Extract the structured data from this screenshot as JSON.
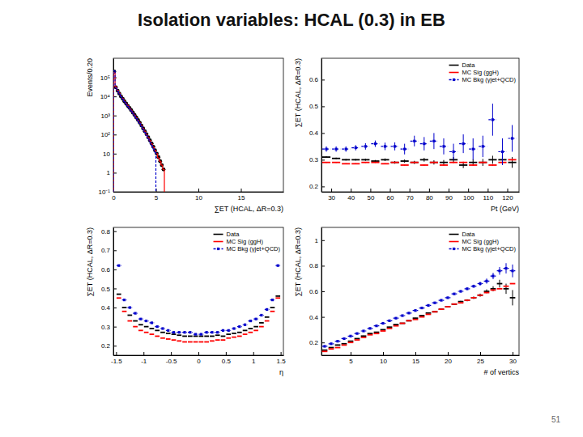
{
  "slide": {
    "title": "Isolation variables:  HCAL (0.3) in EB",
    "page": 51
  },
  "chart_data": [
    {
      "type": "histogram",
      "log": "y",
      "x_label": "∑ET (HCAL, ΔR=0.3)",
      "y_label": "Events/0.20",
      "xlim": [
        0,
        20
      ],
      "xticks": [
        0,
        5,
        10,
        15
      ],
      "ylim": [
        0.1,
        1000000
      ],
      "yticks": [
        {
          "value": 0.1,
          "label": "10⁻¹"
        },
        1,
        10,
        {
          "value": 100,
          "label": "10²"
        },
        {
          "value": 1000,
          "label": "10³"
        },
        {
          "value": 10000,
          "label": "10⁴"
        },
        {
          "value": 100000,
          "label": "10⁵"
        }
      ],
      "bins": [
        0,
        0.2,
        0.4,
        0.6,
        0.8,
        1.0,
        1.2,
        1.4,
        1.6,
        1.8,
        2.0,
        2.2,
        2.4,
        2.6,
        2.8,
        3.0,
        3.2,
        3.4,
        3.6,
        3.8,
        4.0,
        4.2,
        4.4,
        4.6,
        4.8,
        5.0,
        5.2,
        5.4,
        5.6,
        5.8,
        6.0
      ],
      "series": [
        {
          "type": "scatter",
          "marker": "circle",
          "color": "#000000",
          "values": [
            200000,
            30000,
            20000,
            14000,
            10000,
            7500,
            5500,
            4200,
            3200,
            2500,
            1900,
            1400,
            1050,
            780,
            580,
            420,
            300,
            210,
            150,
            105,
            72,
            50,
            34,
            23,
            15,
            10,
            6.5,
            4,
            2.5,
            1.5
          ]
        },
        {
          "type": "step",
          "line_style": "solid",
          "color": "#ff0000",
          "values": [
            180000,
            32000,
            21000,
            15000,
            10500,
            7800,
            5700,
            4300,
            3300,
            2500,
            1900,
            1400,
            1050,
            770,
            560,
            410,
            300,
            210,
            150,
            100,
            70,
            48,
            33,
            22,
            15,
            10,
            6,
            4,
            2.5,
            1.5
          ]
        },
        {
          "type": "step",
          "line_style": "dashed",
          "color": "#0000cc",
          "values": [
            220000,
            28000,
            19000,
            13500,
            9800,
            7200,
            5300,
            4000,
            3000,
            2300,
            1750,
            1300,
            950,
            700,
            520,
            380,
            270,
            190,
            130,
            90,
            60,
            40,
            27,
            18,
            12,
            null,
            null,
            null,
            null,
            null
          ]
        }
      ]
    },
    {
      "type": "scatter",
      "legend": "top-right",
      "x_label": "Pt (GeV)",
      "y_label": "∑ET (HCAL, ΔR=0.3)",
      "xlim": [
        25,
        126
      ],
      "xticks": [
        30,
        40,
        50,
        60,
        70,
        80,
        90,
        100,
        110,
        120
      ],
      "ylim": [
        0.18,
        0.68
      ],
      "yticks": [
        0.2,
        0.3,
        0.4,
        0.5,
        0.6
      ],
      "x": [
        27.5,
        32.5,
        37.5,
        42.5,
        47.5,
        52.5,
        57.5,
        62.5,
        67.5,
        72.5,
        77.5,
        82.5,
        87.5,
        92.5,
        97.5,
        102.5,
        107.5,
        112.5,
        117.5,
        122.5
      ],
      "series": [
        {
          "name": "Data",
          "color": "#000000",
          "marker": "dash",
          "line_style": "solid",
          "values": [
            0.31,
            0.305,
            0.3,
            0.3,
            0.3,
            0.295,
            0.3,
            0.29,
            0.295,
            0.29,
            0.3,
            0.29,
            0.29,
            0.3,
            0.28,
            0.29,
            0.29,
            0.3,
            0.3,
            0.29
          ],
          "errors": [
            0.003,
            0.003,
            0.003,
            0.003,
            0.004,
            0.004,
            0.005,
            0.005,
            0.006,
            0.006,
            0.007,
            0.008,
            0.009,
            0.01,
            0.011,
            0.012,
            0.013,
            0.015,
            0.017,
            0.02
          ]
        },
        {
          "name": "MC Sig (ggH)",
          "color": "#ff0000",
          "marker": "dash",
          "line_style": "solid",
          "values": [
            0.29,
            0.29,
            0.285,
            0.285,
            0.29,
            0.29,
            0.285,
            0.29,
            0.28,
            0.29,
            0.28,
            0.29,
            0.28,
            0.29,
            0.29,
            0.28,
            0.29,
            0.28,
            0.29,
            0.3
          ],
          "errors": [
            0.002,
            0.002,
            0.002,
            0.002,
            0.002,
            0.002,
            0.002,
            0.002,
            0.002,
            0.002,
            0.003,
            0.003,
            0.003,
            0.003,
            0.003,
            0.003,
            0.003,
            0.003,
            0.003,
            0.003
          ]
        },
        {
          "name": "MC Bkg (γjet+QCD)",
          "color": "#0000cc",
          "marker": "square",
          "line_style": "dashed",
          "values": [
            0.34,
            0.34,
            0.34,
            0.345,
            0.35,
            0.36,
            0.35,
            0.35,
            0.34,
            0.37,
            0.36,
            0.37,
            0.35,
            0.33,
            0.36,
            0.34,
            0.35,
            0.45,
            0.33,
            0.38
          ],
          "errors": [
            0.01,
            0.01,
            0.01,
            0.01,
            0.012,
            0.012,
            0.014,
            0.015,
            0.02,
            0.02,
            0.025,
            0.03,
            0.03,
            0.03,
            0.035,
            0.04,
            0.04,
            0.06,
            0.05,
            0.05
          ]
        }
      ]
    },
    {
      "type": "scatter",
      "legend": "top-right",
      "x_label": "η",
      "y_label": "∑ET (HCAL, ΔR=0.3)",
      "xlim": [
        -1.55,
        1.55
      ],
      "xticks": [
        -1.5,
        -1,
        -0.5,
        0,
        0.5,
        1,
        1.5
      ],
      "ylim": [
        0.15,
        0.82
      ],
      "yticks": [
        0.2,
        0.3,
        0.4,
        0.5,
        0.6,
        0.7,
        0.8
      ],
      "x": [
        -1.45,
        -1.35,
        -1.25,
        -1.15,
        -1.05,
        -0.95,
        -0.85,
        -0.75,
        -0.65,
        -0.55,
        -0.45,
        -0.35,
        -0.25,
        -0.15,
        -0.05,
        0.05,
        0.15,
        0.25,
        0.35,
        0.45,
        0.55,
        0.65,
        0.75,
        0.85,
        0.95,
        1.05,
        1.15,
        1.25,
        1.35,
        1.45
      ],
      "series": [
        {
          "name": "Data",
          "color": "#000000",
          "marker": "dash",
          "line_style": "solid",
          "values": [
            0.47,
            0.4,
            0.36,
            0.33,
            0.31,
            0.3,
            0.29,
            0.28,
            0.27,
            0.265,
            0.26,
            0.255,
            0.25,
            0.25,
            0.25,
            0.25,
            0.25,
            0.25,
            0.255,
            0.25,
            0.26,
            0.265,
            0.27,
            0.28,
            0.29,
            0.3,
            0.32,
            0.35,
            0.4,
            0.46
          ]
        },
        {
          "name": "MC Sig (ggH)",
          "color": "#ff0000",
          "marker": "dash",
          "line_style": "solid",
          "values": [
            0.45,
            0.38,
            0.33,
            0.3,
            0.28,
            0.27,
            0.26,
            0.25,
            0.24,
            0.235,
            0.23,
            0.225,
            0.22,
            0.22,
            0.22,
            0.22,
            0.22,
            0.225,
            0.23,
            0.23,
            0.24,
            0.245,
            0.25,
            0.26,
            0.27,
            0.28,
            0.3,
            0.33,
            0.38,
            0.45
          ]
        },
        {
          "name": "MC Bkg (γjet+QCD)",
          "color": "#0000cc",
          "marker": "square",
          "line_style": "dashed",
          "values": [
            0.62,
            0.44,
            0.4,
            0.37,
            0.34,
            0.33,
            0.32,
            0.3,
            0.29,
            0.28,
            0.27,
            0.27,
            0.27,
            0.27,
            0.26,
            0.26,
            0.27,
            0.27,
            0.27,
            0.28,
            0.28,
            0.29,
            0.3,
            0.31,
            0.33,
            0.34,
            0.36,
            0.39,
            0.44,
            0.62
          ]
        }
      ]
    },
    {
      "type": "scatter",
      "legend": "top-right",
      "x_label": "# of vertics",
      "y_label": "∑ET (HCAL, ΔR=0.3)",
      "xlim": [
        0.5,
        31
      ],
      "xticks": [
        5,
        10,
        15,
        20,
        25,
        30
      ],
      "ylim": [
        0.1,
        1.1
      ],
      "yticks": [
        0.2,
        0.4,
        0.6,
        0.8,
        1
      ],
      "x": [
        1,
        2,
        3,
        4,
        5,
        6,
        7,
        8,
        9,
        10,
        11,
        12,
        13,
        14,
        15,
        16,
        17,
        18,
        19,
        20,
        21,
        22,
        23,
        24,
        25,
        26,
        27,
        28,
        29,
        30
      ],
      "series": [
        {
          "name": "Data",
          "color": "#000000",
          "marker": "dash",
          "line_style": "solid",
          "values": [
            0.14,
            0.16,
            0.18,
            0.19,
            0.21,
            0.23,
            0.25,
            0.27,
            0.28,
            0.3,
            0.32,
            0.34,
            0.35,
            0.37,
            0.39,
            0.41,
            0.43,
            0.44,
            0.46,
            0.48,
            0.5,
            0.52,
            0.53,
            0.55,
            0.57,
            0.6,
            0.62,
            0.66,
            0.62,
            0.55
          ],
          "errors": [
            0.003,
            0.003,
            0.003,
            0.003,
            0.003,
            0.003,
            0.003,
            0.003,
            0.003,
            0.003,
            0.003,
            0.003,
            0.003,
            0.003,
            0.003,
            0.003,
            0.003,
            0.003,
            0.003,
            0.003,
            0.005,
            0.006,
            0.008,
            0.01,
            0.012,
            0.015,
            0.02,
            0.03,
            0.04,
            0.06
          ]
        },
        {
          "name": "MC Sig (ggH)",
          "color": "#ff0000",
          "marker": "dash",
          "line_style": "solid",
          "values": [
            0.13,
            0.15,
            0.16,
            0.18,
            0.2,
            0.22,
            0.24,
            0.26,
            0.27,
            0.29,
            0.31,
            0.33,
            0.35,
            0.37,
            0.38,
            0.4,
            0.42,
            0.44,
            0.46,
            0.48,
            0.5,
            0.51,
            0.53,
            0.55,
            0.57,
            0.59,
            0.61,
            0.62,
            0.64,
            0.66
          ]
        },
        {
          "name": "MC Bkg (γjet+QCD)",
          "color": "#0000cc",
          "marker": "square",
          "line_style": "dashed",
          "values": [
            0.17,
            0.19,
            0.21,
            0.23,
            0.25,
            0.27,
            0.29,
            0.31,
            0.33,
            0.35,
            0.37,
            0.39,
            0.41,
            0.43,
            0.45,
            0.47,
            0.49,
            0.51,
            0.53,
            0.55,
            0.58,
            0.6,
            0.62,
            0.64,
            0.66,
            0.68,
            0.72,
            0.76,
            0.78,
            0.76
          ],
          "errors": [
            0.004,
            0.004,
            0.004,
            0.004,
            0.004,
            0.004,
            0.004,
            0.004,
            0.004,
            0.004,
            0.004,
            0.004,
            0.004,
            0.004,
            0.004,
            0.004,
            0.004,
            0.004,
            0.004,
            0.004,
            0.006,
            0.008,
            0.01,
            0.012,
            0.015,
            0.02,
            0.025,
            0.03,
            0.04,
            0.05
          ]
        }
      ]
    }
  ]
}
